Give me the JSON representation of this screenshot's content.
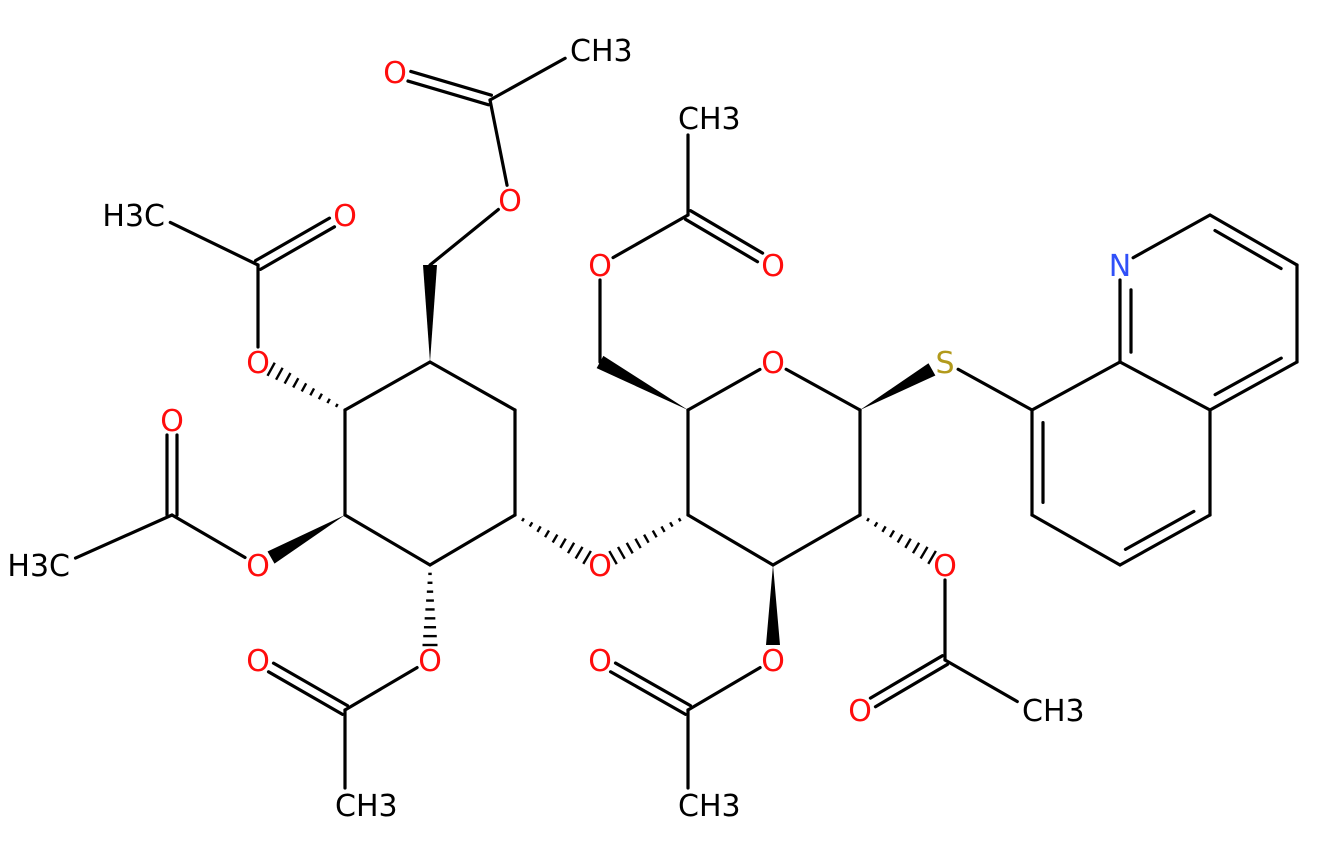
{
  "molecule": {
    "element_colors": {
      "C": "#000000",
      "O": "#ff0d0d",
      "N": "#3050f8",
      "S": "#b29a1c"
    },
    "atoms": [
      {
        "symbol": "O"
      },
      {
        "symbol": "C"
      },
      {
        "symbol": "C"
      },
      {
        "symbol": "C"
      },
      {
        "symbol": "C"
      },
      {
        "symbol": "C"
      },
      {
        "symbol": "C"
      },
      {
        "symbol": "O",
        "label": "O"
      },
      {
        "symbol": "C"
      },
      {
        "symbol": "O",
        "label": "O"
      },
      {
        "symbol": "C",
        "label": "CH3"
      },
      {
        "symbol": "O",
        "label": "O"
      },
      {
        "symbol": "C"
      },
      {
        "symbol": "O",
        "label": "O"
      },
      {
        "symbol": "C",
        "label": "H3C"
      },
      {
        "symbol": "O",
        "label": "O"
      },
      {
        "symbol": "C"
      },
      {
        "symbol": "O",
        "label": "O"
      },
      {
        "symbol": "C",
        "label": "H3C"
      },
      {
        "symbol": "O",
        "label": "O"
      },
      {
        "symbol": "C"
      },
      {
        "symbol": "O",
        "label": "O"
      },
      {
        "symbol": "C",
        "label": "CH3"
      },
      {
        "symbol": "O",
        "label": "O"
      },
      {
        "symbol": "C"
      },
      {
        "symbol": "C"
      },
      {
        "symbol": "O",
        "label": "O"
      },
      {
        "symbol": "C"
      },
      {
        "symbol": "C"
      },
      {
        "symbol": "C"
      },
      {
        "symbol": "C"
      },
      {
        "symbol": "O",
        "label": "O"
      },
      {
        "symbol": "C"
      },
      {
        "symbol": "O",
        "label": "O"
      },
      {
        "symbol": "C",
        "label": "CH3"
      },
      {
        "symbol": "O",
        "label": "O"
      },
      {
        "symbol": "C"
      },
      {
        "symbol": "O",
        "label": "O"
      },
      {
        "symbol": "C",
        "label": "CH3"
      },
      {
        "symbol": "O",
        "label": "O"
      },
      {
        "symbol": "C"
      },
      {
        "symbol": "O",
        "label": "O"
      },
      {
        "symbol": "C",
        "label": "CH3"
      },
      {
        "symbol": "S",
        "label": "S"
      },
      {
        "symbol": "C"
      },
      {
        "symbol": "C"
      },
      {
        "symbol": "N",
        "label": "N"
      },
      {
        "symbol": "C"
      },
      {
        "symbol": "C"
      },
      {
        "symbol": "C"
      },
      {
        "symbol": "C"
      },
      {
        "symbol": "C"
      },
      {
        "symbol": "C"
      },
      {
        "symbol": "C"
      }
    ]
  }
}
